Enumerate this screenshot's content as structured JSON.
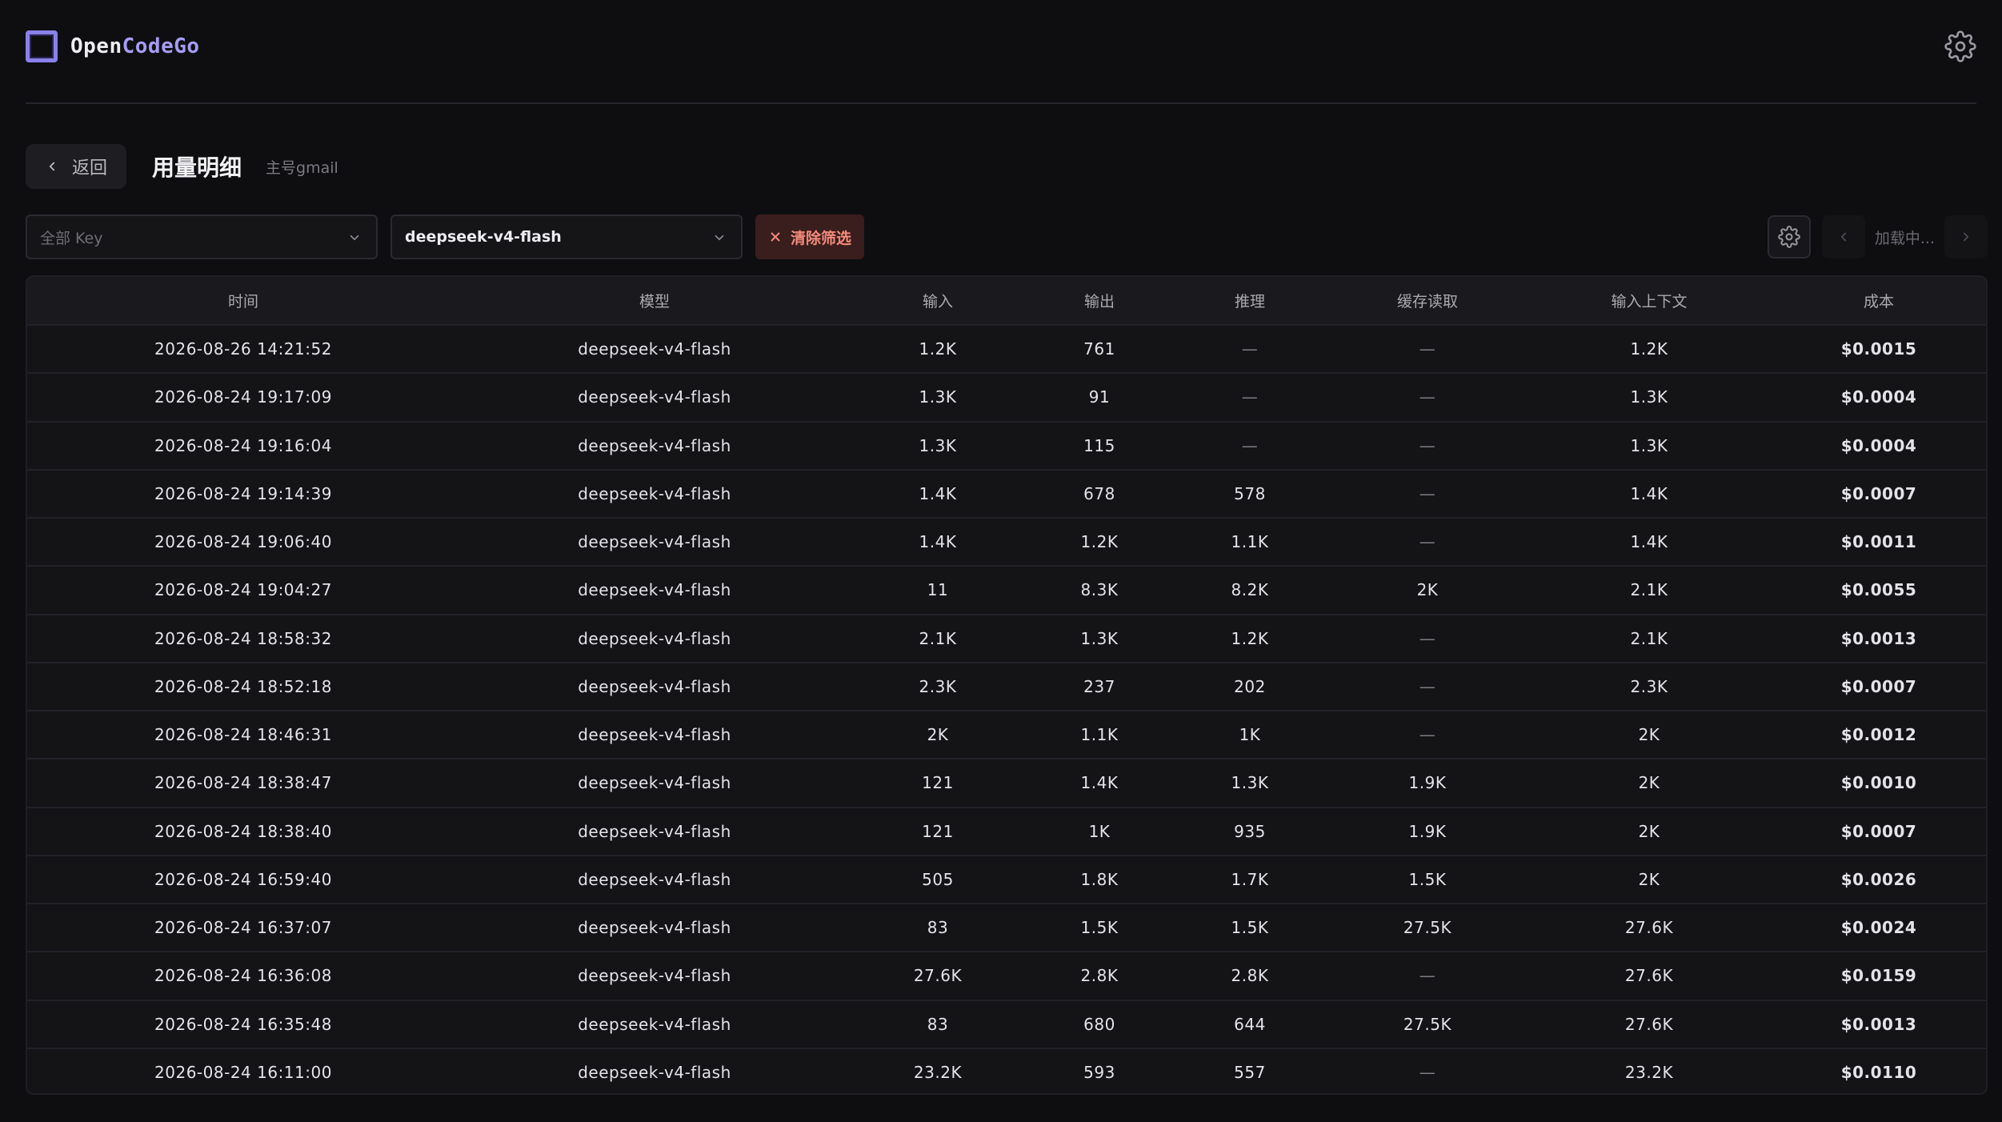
{
  "app": {
    "logo_part1": "Open",
    "logo_part2": "CodeGo"
  },
  "header": {
    "back_label": "返回",
    "title": "用量明细",
    "subtitle": "主号gmail"
  },
  "filters": {
    "key_select": "全部 Key",
    "model_select": "deepseek-v4-flash",
    "clear_label": "清除筛选",
    "loading_label": "加载中..."
  },
  "table": {
    "columns": [
      "时间",
      "模型",
      "输入",
      "输出",
      "推理",
      "缓存读取",
      "输入上下文",
      "成本"
    ],
    "rows": [
      [
        "2026-08-26 14:21:52",
        "deepseek-v4-flash",
        "1.2K",
        "761",
        "—",
        "—",
        "1.2K",
        "$0.0015"
      ],
      [
        "2026-08-24 19:17:09",
        "deepseek-v4-flash",
        "1.3K",
        "91",
        "—",
        "—",
        "1.3K",
        "$0.0004"
      ],
      [
        "2026-08-24 19:16:04",
        "deepseek-v4-flash",
        "1.3K",
        "115",
        "—",
        "—",
        "1.3K",
        "$0.0004"
      ],
      [
        "2026-08-24 19:14:39",
        "deepseek-v4-flash",
        "1.4K",
        "678",
        "578",
        "—",
        "1.4K",
        "$0.0007"
      ],
      [
        "2026-08-24 19:06:40",
        "deepseek-v4-flash",
        "1.4K",
        "1.2K",
        "1.1K",
        "—",
        "1.4K",
        "$0.0011"
      ],
      [
        "2026-08-24 19:04:27",
        "deepseek-v4-flash",
        "11",
        "8.3K",
        "8.2K",
        "2K",
        "2.1K",
        "$0.0055"
      ],
      [
        "2026-08-24 18:58:32",
        "deepseek-v4-flash",
        "2.1K",
        "1.3K",
        "1.2K",
        "—",
        "2.1K",
        "$0.0013"
      ],
      [
        "2026-08-24 18:52:18",
        "deepseek-v4-flash",
        "2.3K",
        "237",
        "202",
        "—",
        "2.3K",
        "$0.0007"
      ],
      [
        "2026-08-24 18:46:31",
        "deepseek-v4-flash",
        "2K",
        "1.1K",
        "1K",
        "—",
        "2K",
        "$0.0012"
      ],
      [
        "2026-08-24 18:38:47",
        "deepseek-v4-flash",
        "121",
        "1.4K",
        "1.3K",
        "1.9K",
        "2K",
        "$0.0010"
      ],
      [
        "2026-08-24 18:38:40",
        "deepseek-v4-flash",
        "121",
        "1K",
        "935",
        "1.9K",
        "2K",
        "$0.0007"
      ],
      [
        "2026-08-24 16:59:40",
        "deepseek-v4-flash",
        "505",
        "1.8K",
        "1.7K",
        "1.5K",
        "2K",
        "$0.0026"
      ],
      [
        "2026-08-24 16:37:07",
        "deepseek-v4-flash",
        "83",
        "1.5K",
        "1.5K",
        "27.5K",
        "27.6K",
        "$0.0024"
      ],
      [
        "2026-08-24 16:36:08",
        "deepseek-v4-flash",
        "27.6K",
        "2.8K",
        "2.8K",
        "—",
        "27.6K",
        "$0.0159"
      ],
      [
        "2026-08-24 16:35:48",
        "deepseek-v4-flash",
        "83",
        "680",
        "644",
        "27.5K",
        "27.6K",
        "$0.0013"
      ],
      [
        "2026-08-24 16:11:00",
        "deepseek-v4-flash",
        "23.2K",
        "593",
        "557",
        "—",
        "23.2K",
        "$0.0110"
      ]
    ]
  },
  "colors": {
    "accent": "#a59cf3",
    "danger": "#f28b7b",
    "background": "#0e0e11"
  },
  "icons": {
    "logo": "logo-square-icon",
    "settings": "gear-icon",
    "back": "chevron-left-icon",
    "dropdown": "chevron-down-icon",
    "clear": "close-icon",
    "prev": "chevron-left-icon",
    "next": "chevron-right-icon"
  }
}
